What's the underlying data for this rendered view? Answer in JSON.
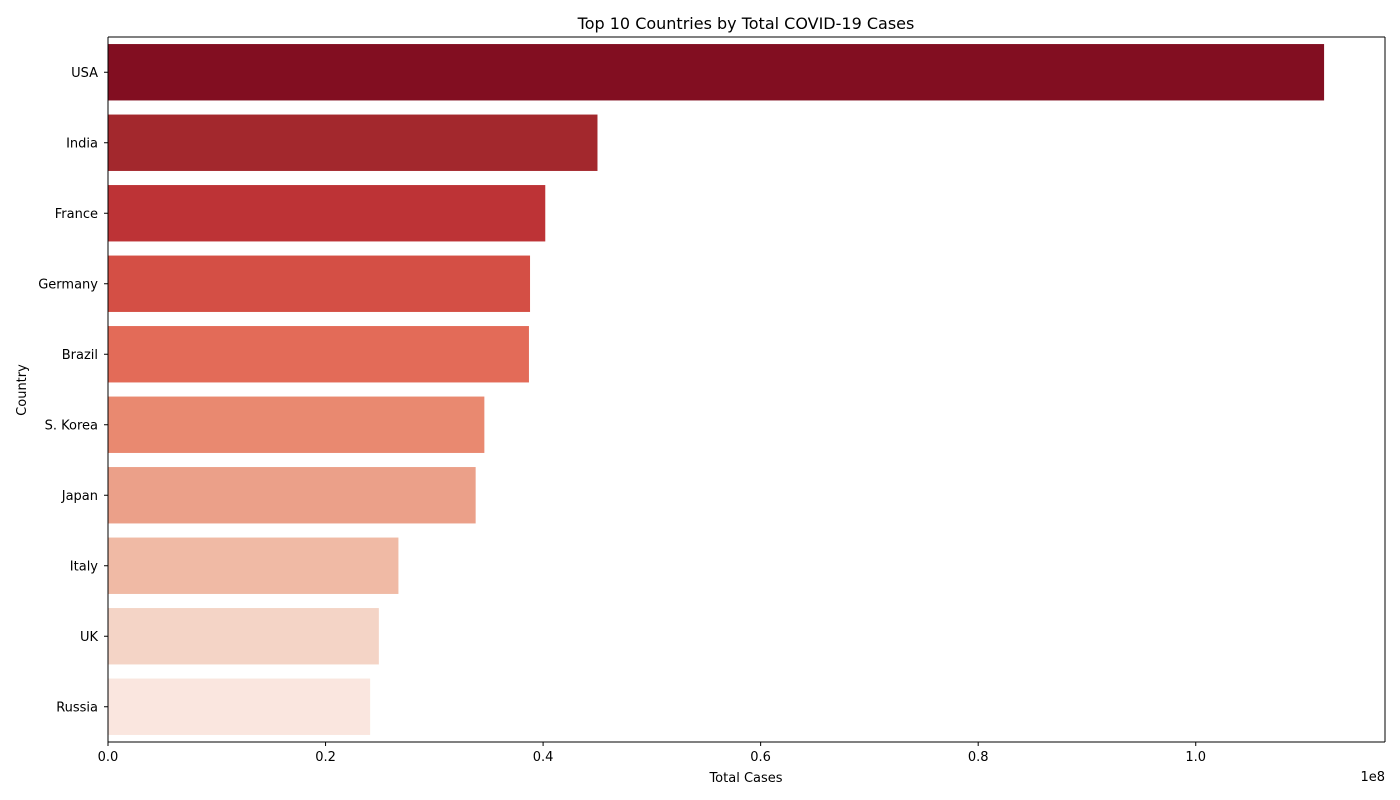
{
  "chart_data": {
    "type": "bar",
    "orientation": "horizontal",
    "title": "Top 10 Countries by Total COVID-19 Cases",
    "xlabel": "Total Cases",
    "ylabel": "Country",
    "offset_text": "1e8",
    "categories": [
      "USA",
      "India",
      "France",
      "Germany",
      "Brazil",
      "S. Korea",
      "Japan",
      "Italy",
      "UK",
      "Russia"
    ],
    "values": [
      111800000,
      45000000,
      40200000,
      38800000,
      38700000,
      34600000,
      33800000,
      26700000,
      24900000,
      24100000
    ],
    "colors": [
      "#820e21",
      "#a3282d",
      "#bd3336",
      "#d44f45",
      "#e36b58",
      "#e98970",
      "#eba089",
      "#f0baa5",
      "#f4d4c6",
      "#fae6df"
    ],
    "xlim": [
      0,
      117400000
    ],
    "xticks": [
      0,
      20000000,
      40000000,
      60000000,
      80000000,
      100000000
    ],
    "xtick_labels": [
      "0.0",
      "0.2",
      "0.4",
      "0.6",
      "0.8",
      "1.0"
    ],
    "grid": false,
    "legend": "none"
  }
}
